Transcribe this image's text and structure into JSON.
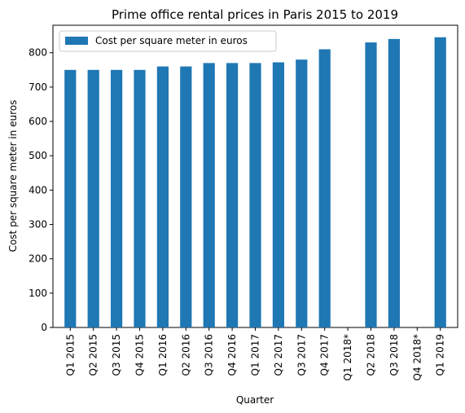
{
  "chart_data": {
    "type": "bar",
    "title": "Prime office rental prices in Paris 2015 to 2019",
    "xlabel": "Quarter",
    "ylabel": "Cost per square meter in euros",
    "categories": [
      "Q1 2015",
      "Q2 2015",
      "Q3 2015",
      "Q4 2015",
      "Q1 2016",
      "Q2 2016",
      "Q3 2016",
      "Q4 2016",
      "Q1 2017",
      "Q2 2017",
      "Q3 2017",
      "Q4 2017",
      "Q1 2018*",
      "Q2 2018",
      "Q3 2018",
      "Q4 2018*",
      "Q1 2019"
    ],
    "series": [
      {
        "name": "Cost per square meter in euros",
        "values": [
          750,
          750,
          750,
          750,
          760,
          760,
          770,
          770,
          770,
          772,
          780,
          810,
          null,
          830,
          840,
          null,
          845
        ],
        "color": "#1f77b4"
      }
    ],
    "ylim": [
      0,
      880
    ],
    "yticks": [
      0,
      100,
      200,
      300,
      400,
      500,
      600,
      700,
      800
    ],
    "legend_position": "top-left",
    "grid": false
  }
}
